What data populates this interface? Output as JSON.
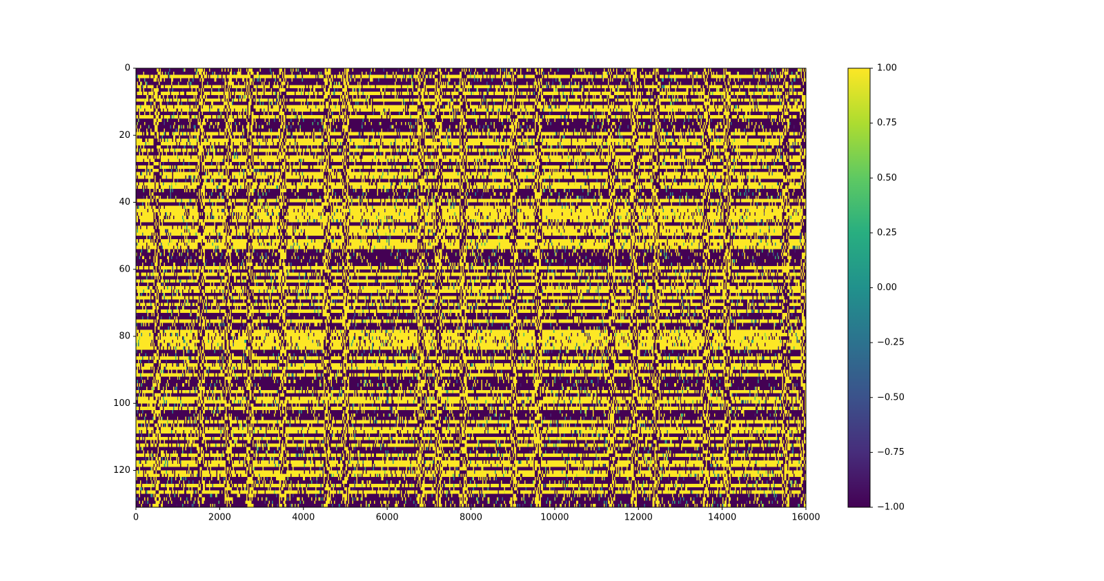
{
  "chart_data": {
    "type": "heatmap",
    "title": "",
    "xlabel": "",
    "ylabel": "",
    "x_range": [
      0,
      16000
    ],
    "y_range": [
      0,
      131
    ],
    "y_inverted": true,
    "x_ticks": [
      "0",
      "2000",
      "4000",
      "6000",
      "8000",
      "10000",
      "12000",
      "14000",
      "16000"
    ],
    "y_ticks": [
      "0",
      "20",
      "40",
      "60",
      "80",
      "100",
      "120"
    ],
    "colormap": "viridis",
    "color_range": [
      -1.0,
      1.0
    ],
    "colorbar_ticks": [
      "1.00",
      "0.75",
      "0.50",
      "0.25",
      "0.00",
      "−0.25",
      "−0.50",
      "−0.75",
      "−1.00"
    ],
    "colorbar_position": "right",
    "rows": 131,
    "row_baseline": [
      -1,
      -1,
      1,
      -1,
      -1,
      1,
      -1,
      1,
      -1,
      1,
      -1,
      1,
      1,
      -1,
      1,
      -1,
      -1,
      -1,
      -1,
      1,
      -1,
      1,
      1,
      -1,
      1,
      -1,
      1,
      1,
      -1,
      1,
      -1,
      1,
      1,
      -1,
      1,
      1,
      -1,
      -1,
      -1,
      1,
      -1,
      1,
      1,
      1,
      1,
      1,
      -1,
      1,
      1,
      1,
      -1,
      1,
      1,
      1,
      -1,
      -1,
      -1,
      -1,
      -1,
      1,
      -1,
      1,
      -1,
      1,
      -1,
      1,
      1,
      -1,
      1,
      -1,
      1,
      -1,
      1,
      -1,
      -1,
      1,
      -1,
      -1,
      1,
      1,
      1,
      1,
      1,
      1,
      -1,
      -1,
      1,
      -1,
      1,
      1,
      -1,
      1,
      -1,
      -1,
      -1,
      -1,
      1,
      -1,
      1,
      1,
      -1,
      1,
      -1,
      -1,
      -1,
      1,
      -1,
      1,
      1,
      -1,
      1,
      -1,
      1,
      -1,
      -1,
      1,
      -1,
      1,
      1,
      -1,
      1,
      1,
      -1,
      -1,
      1,
      -1,
      1,
      -1,
      -1,
      -1,
      -1
    ],
    "global_flip_columns_x": [
      500,
      1550,
      2200,
      2700,
      3500,
      4550,
      5000,
      6800,
      7200,
      7800,
      9000,
      9600,
      11350,
      11900,
      12400,
      13600,
      14100,
      15500,
      15950
    ]
  }
}
